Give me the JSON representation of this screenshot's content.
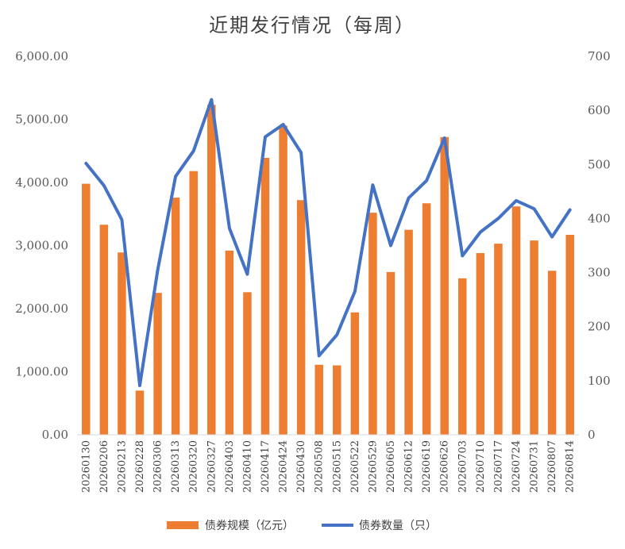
{
  "chart_data": {
    "type": "bar",
    "title": "近期发行情况（每周）",
    "categories": [
      "20260130",
      "20260206",
      "20260213",
      "20260228",
      "20260306",
      "20260313",
      "20260320",
      "20260327",
      "20260403",
      "20260410",
      "20260417",
      "20260424",
      "20260430",
      "20260508",
      "20260515",
      "20260522",
      "20260529",
      "20260605",
      "20260612",
      "20260619",
      "20260626",
      "20260703",
      "20260710",
      "20260717",
      "20260724",
      "20260731",
      "20260807",
      "20260814"
    ],
    "series": [
      {
        "name": "债券规模（亿元）",
        "type": "bar",
        "axis": "left",
        "color": "#ED7D31",
        "values": [
          3980,
          3330,
          2890,
          700,
          2250,
          3760,
          4180,
          5230,
          2920,
          2260,
          4390,
          4900,
          3720,
          1110,
          1100,
          1940,
          3520,
          2580,
          3250,
          3670,
          4720,
          2480,
          2880,
          3030,
          3620,
          3080,
          2600,
          3170
        ]
      },
      {
        "name": "债券数量（只）",
        "type": "line",
        "axis": "right",
        "color": "#4472C4",
        "values": [
          502,
          461,
          398,
          91,
          305,
          478,
          525,
          620,
          382,
          297,
          551,
          574,
          522,
          146,
          185,
          265,
          462,
          350,
          438,
          470,
          549,
          331,
          375,
          400,
          433,
          418,
          366,
          416
        ]
      }
    ],
    "y_left": {
      "min": 0,
      "max": 6000,
      "step": 1000,
      "tick_labels": [
        "0.00",
        "1,000.00",
        "2,000.00",
        "3,000.00",
        "4,000.00",
        "5,000.00",
        "6,000.00"
      ]
    },
    "y_right": {
      "min": 0,
      "max": 700,
      "step": 100,
      "tick_labels": [
        "0",
        "100",
        "200",
        "300",
        "400",
        "500",
        "600",
        "700"
      ]
    },
    "grid": false,
    "legend_position": "bottom"
  }
}
